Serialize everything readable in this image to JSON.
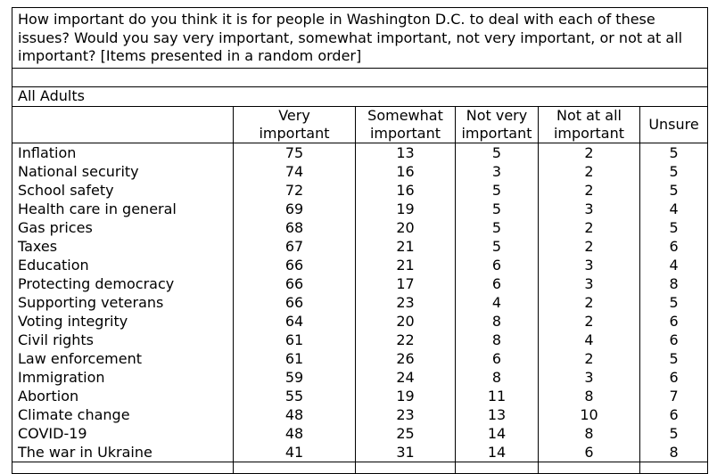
{
  "question": "How important do you think it is for people in Washington D.C. to deal with each of these issues? Would you say very important, somewhat important, not very important, or not at all important? [Items presented in a random order]",
  "group_label": "All Adults",
  "columns": [
    {
      "line1": "Very",
      "line2": "important"
    },
    {
      "line1": "Somewhat",
      "line2": "important"
    },
    {
      "line1": "Not very",
      "line2": "important"
    },
    {
      "line1": "Not at all",
      "line2": "important"
    },
    {
      "line1": "Unsure",
      "line2": ""
    }
  ],
  "rows": [
    {
      "issue": "Inflation",
      "values": [
        "75",
        "13",
        "5",
        "2",
        "5"
      ]
    },
    {
      "issue": "National security",
      "values": [
        "74",
        "16",
        "3",
        "2",
        "5"
      ]
    },
    {
      "issue": "School safety",
      "values": [
        "72",
        "16",
        "5",
        "2",
        "5"
      ]
    },
    {
      "issue": "Health care in general",
      "values": [
        "69",
        "19",
        "5",
        "3",
        "4"
      ]
    },
    {
      "issue": "Gas prices",
      "values": [
        "68",
        "20",
        "5",
        "2",
        "5"
      ]
    },
    {
      "issue": "Taxes",
      "values": [
        "67",
        "21",
        "5",
        "2",
        "6"
      ]
    },
    {
      "issue": "Education",
      "values": [
        "66",
        "21",
        "6",
        "3",
        "4"
      ]
    },
    {
      "issue": "Protecting democracy",
      "values": [
        "66",
        "17",
        "6",
        "3",
        "8"
      ]
    },
    {
      "issue": "Supporting veterans",
      "values": [
        "66",
        "23",
        "4",
        "2",
        "5"
      ]
    },
    {
      "issue": "Voting integrity",
      "values": [
        "64",
        "20",
        "8",
        "2",
        "6"
      ]
    },
    {
      "issue": "Civil rights",
      "values": [
        "61",
        "22",
        "8",
        "4",
        "6"
      ]
    },
    {
      "issue": "Law enforcement",
      "values": [
        "61",
        "26",
        "6",
        "2",
        "5"
      ]
    },
    {
      "issue": "Immigration",
      "values": [
        "59",
        "24",
        "8",
        "3",
        "6"
      ]
    },
    {
      "issue": "Abortion",
      "values": [
        "55",
        "19",
        "11",
        "8",
        "7"
      ]
    },
    {
      "issue": "Climate change",
      "values": [
        "48",
        "23",
        "13",
        "10",
        "6"
      ]
    },
    {
      "issue": "COVID-19",
      "values": [
        "48",
        "25",
        "14",
        "8",
        "5"
      ]
    },
    {
      "issue": "The war in Ukraine",
      "values": [
        "41",
        "31",
        "14",
        "6",
        "8"
      ]
    }
  ]
}
